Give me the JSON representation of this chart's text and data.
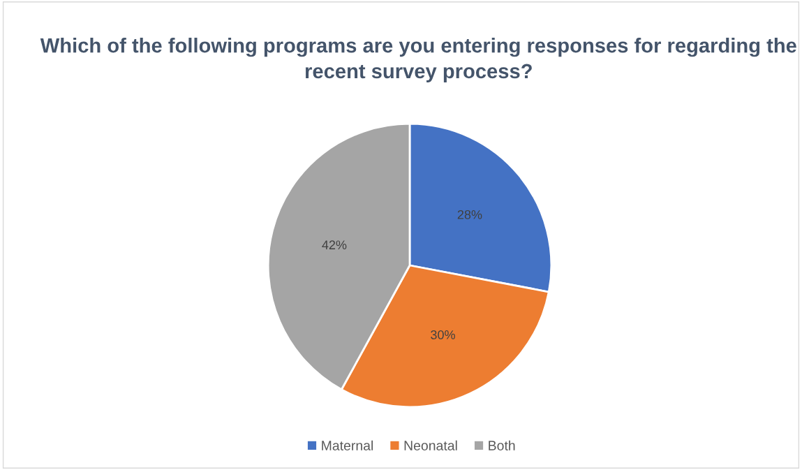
{
  "chart_data": {
    "type": "pie",
    "title": "Which of the following programs are you entering responses for regarding the recent survey process?",
    "categories": [
      "Maternal",
      "Neonatal",
      "Both"
    ],
    "values": [
      28,
      30,
      42
    ],
    "colors": [
      "#4472c4",
      "#ed7d31",
      "#a5a5a5"
    ],
    "value_labels": [
      "28%",
      "30%",
      "42%"
    ],
    "legend": "bottom"
  }
}
